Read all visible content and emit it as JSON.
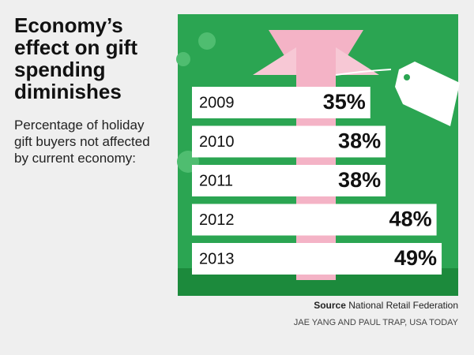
{
  "chart_data": {
    "type": "bar",
    "orientation": "horizontal",
    "title": "Economy’s effect on gift spending diminishes",
    "subtitle": "Percentage of holiday gift buyers not affected by current economy:",
    "categories": [
      "2009",
      "2010",
      "2011",
      "2012",
      "2013"
    ],
    "values": [
      35,
      38,
      38,
      48,
      49
    ],
    "value_labels": [
      "35%",
      "38%",
      "38%",
      "48%",
      "49%"
    ],
    "color": "#ffffff",
    "source_label": "Source",
    "source": "National Retail Federation",
    "credit": "JAE YANG AND PAUL TRAP, USA TODAY"
  }
}
